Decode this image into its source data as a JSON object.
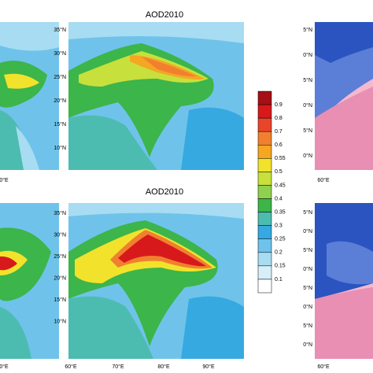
{
  "top_left": {
    "lon_labels": [
      "0°E"
    ]
  },
  "top_center": {
    "title": "AOD2010",
    "lat_labels": [
      "35°N",
      "30°N",
      "25°N",
      "20°N",
      "15°N",
      "10°N"
    ]
  },
  "top_right": {
    "lat_labels": [
      "5°N",
      "0°N",
      "5°N",
      "0°N",
      "5°N",
      "0°N"
    ],
    "lon_labels": [
      "60°E"
    ]
  },
  "bottom_left": {
    "lon_labels": [
      "0°E"
    ]
  },
  "bottom_center": {
    "title": "AOD2010",
    "lat_labels": [
      "35°N",
      "30°N",
      "25°N",
      "20°N",
      "15°N",
      "10°N"
    ],
    "lon_labels": [
      "60°E",
      "70°E",
      "80°E",
      "90°E"
    ]
  },
  "bottom_right": {
    "lat_labels": [
      "5°N",
      "0°N",
      "5°N",
      "0°N",
      "5°N",
      "0°N",
      "5°N",
      "0°N"
    ],
    "lon_labels": [
      "60°E"
    ]
  },
  "colorbar": {
    "labels": [
      "0.9",
      "0.8",
      "0.7",
      "0.6",
      "0.55",
      "0.5",
      "0.45",
      "0.4",
      "0.35",
      "0.3",
      "0.25",
      "0.2",
      "0.15",
      "0.1"
    ]
  }
}
